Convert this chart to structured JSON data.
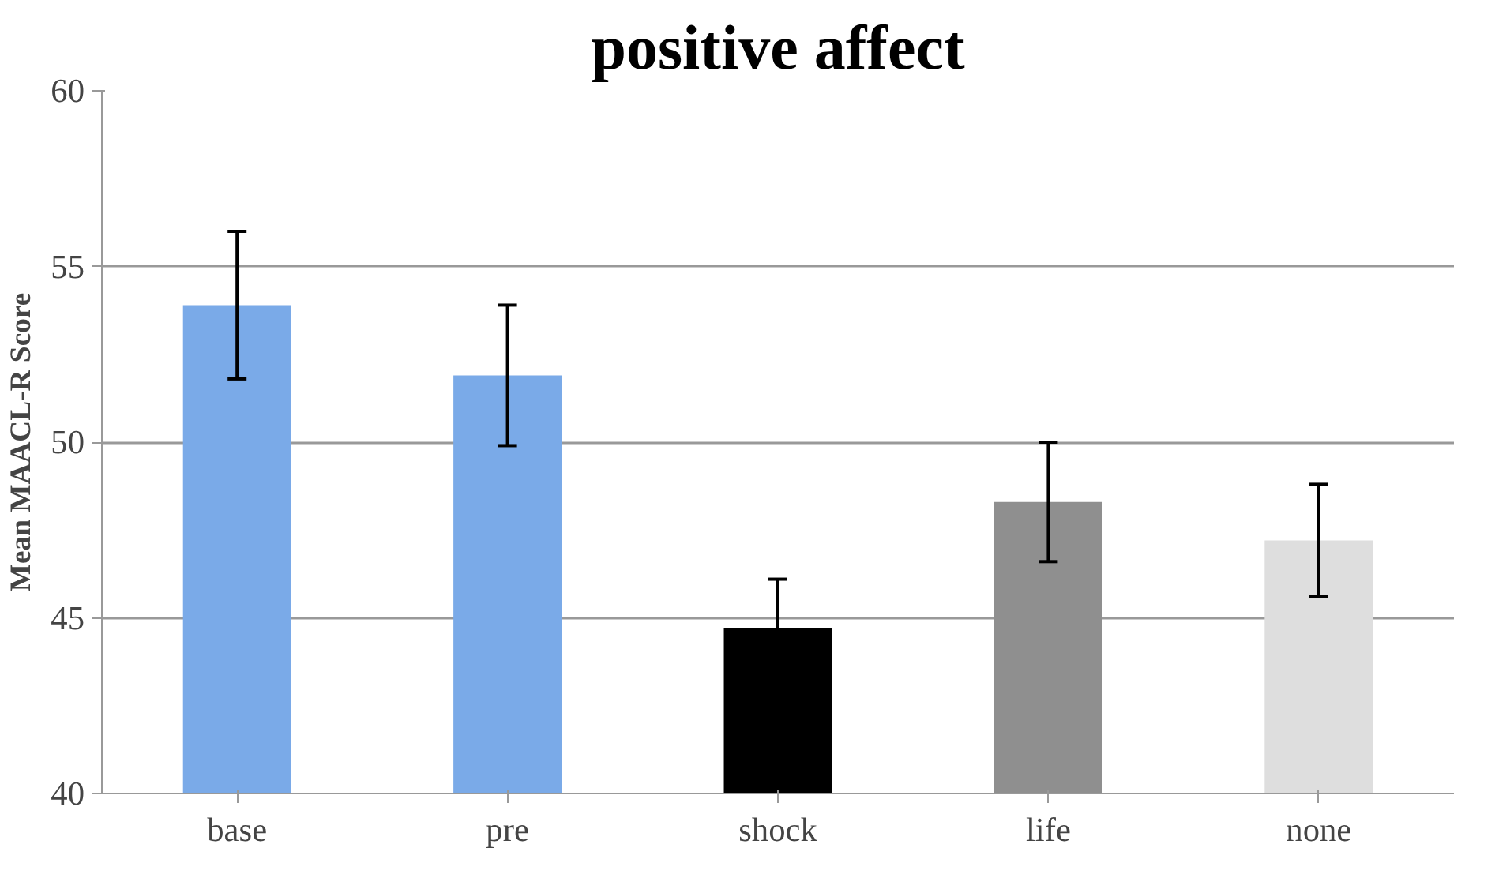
{
  "chart_data": {
    "type": "bar",
    "title": "positive affect",
    "ylabel": "Mean MAACL-R Score",
    "categories": [
      "base",
      "pre",
      "shock",
      "life",
      "none"
    ],
    "values": [
      53.9,
      51.9,
      44.7,
      48.3,
      47.2
    ],
    "errors": [
      2.1,
      2.0,
      1.4,
      1.7,
      1.6
    ],
    "colors": [
      "#7aaae8",
      "#7aaae8",
      "#000000",
      "#8f8f8f",
      "#dedede"
    ],
    "ylim": [
      40,
      60
    ],
    "yticks": [
      40,
      45,
      50,
      55,
      60
    ],
    "grid": "y"
  }
}
